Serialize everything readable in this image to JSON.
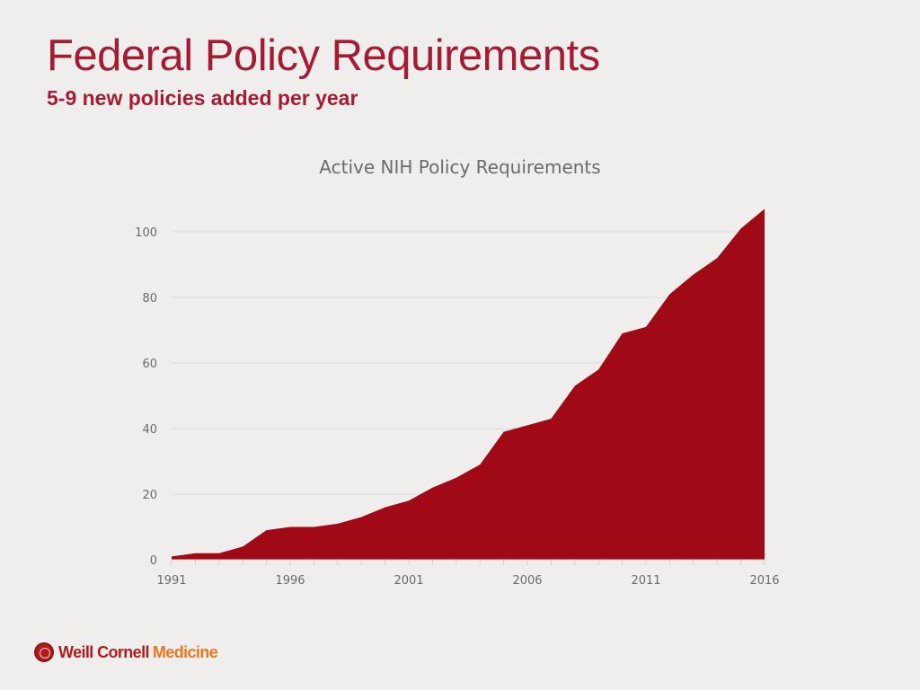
{
  "slide": {
    "title": "Federal Policy Requirements",
    "subtitle": "5-9 new policies added per year"
  },
  "footer": {
    "brand_main": "Weill Cornell",
    "brand_accent": "Medicine"
  },
  "colors": {
    "title": "#a51c30",
    "area_fill": "#a00a16",
    "gridline": "#dcdbda",
    "tick_text": "#6b6b6b"
  },
  "chart_data": {
    "type": "area",
    "title": "Active NIH Policy Requirements",
    "xlabel": "",
    "ylabel": "",
    "x": [
      1991,
      1992,
      1993,
      1994,
      1995,
      1996,
      1997,
      1998,
      1999,
      2000,
      2001,
      2002,
      2003,
      2004,
      2005,
      2006,
      2007,
      2008,
      2009,
      2010,
      2011,
      2012,
      2013,
      2014,
      2015,
      2016
    ],
    "values": [
      1,
      2,
      2,
      4,
      9,
      10,
      10,
      11,
      13,
      16,
      18,
      22,
      25,
      29,
      39,
      41,
      43,
      53,
      58,
      69,
      71,
      81,
      87,
      92,
      101,
      107
    ],
    "xticks": [
      1991,
      1996,
      2001,
      2006,
      2011,
      2016
    ],
    "yticks": [
      0,
      20,
      40,
      60,
      80,
      100
    ],
    "xlim": [
      1991,
      2016
    ],
    "ylim": [
      0,
      100
    ],
    "grid": true,
    "legend": "none"
  }
}
